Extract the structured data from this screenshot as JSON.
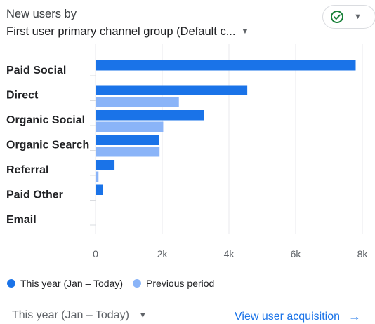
{
  "header": {
    "title_line1": "New users by",
    "title_line2": "First user primary channel group (Default c...",
    "dimension_dropdown_icon": "caret-down-icon",
    "status_icon": "check-circle-icon",
    "status_dropdown_icon": "caret-down-icon"
  },
  "colors": {
    "current": "#1a73e8",
    "previous": "#8ab4f8",
    "grid": "#e8eaed",
    "status_ok": "#188038",
    "link": "#1a73e8"
  },
  "chart_data": {
    "type": "bar",
    "orientation": "horizontal",
    "categories": [
      "Paid Social",
      "Direct",
      "Organic Social",
      "Organic Search",
      "Referral",
      "Paid Other",
      "Email"
    ],
    "series": [
      {
        "name": "This year (Jan – Today)",
        "values": [
          7800,
          4550,
          3250,
          1900,
          570,
          230,
          3
        ]
      },
      {
        "name": "Previous period",
        "values": [
          0,
          2500,
          2030,
          1920,
          90,
          0,
          20
        ]
      }
    ],
    "x_ticks": [
      "0",
      "2k",
      "4k",
      "6k",
      "8k"
    ],
    "xlim": [
      0,
      8000
    ],
    "grid": true,
    "legend_position": "bottom-left"
  },
  "footer": {
    "date_range": "This year (Jan – Today)",
    "date_dropdown_icon": "caret-down-icon",
    "link_label": "View user acquisition",
    "link_icon": "arrow-right-icon"
  }
}
